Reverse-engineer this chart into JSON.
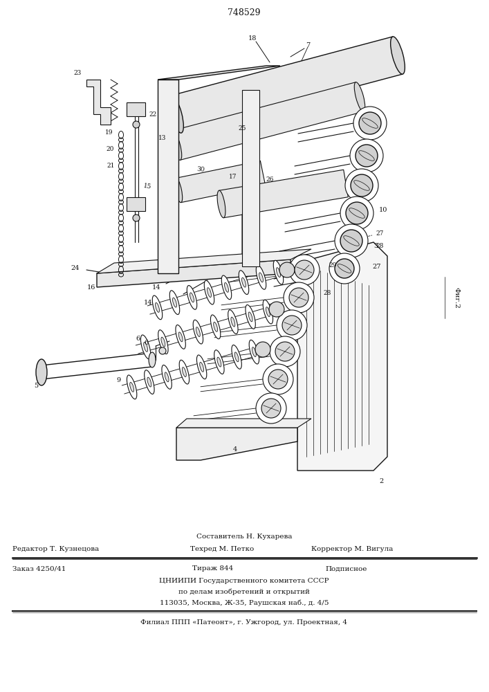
{
  "patent_number": "748529",
  "fig_label": "Фиг.2",
  "background_color": "#ffffff",
  "text_color": "#111111",
  "footer": {
    "line1_center": "Составитель Н. Кухарева",
    "line2_left": "Редактор Т. Кузнецова",
    "line2_mid": "Техред М. Петко",
    "line2_right": "Корректор М. Вигула",
    "line3_left": "Заказ 4250/41",
    "line3_mid": "Тираж 844",
    "line3_right": "Подписное",
    "line4": "ЦНИИПИ Государственного комитета СССР",
    "line5": "по делам изобретений и открытий",
    "line6": "113035, Москва, Ж-35, Раушская наб., д. 4/5",
    "line7": "Филиал ППП «Патеонт», г. Ужгород, ул. Проектная, 4"
  }
}
